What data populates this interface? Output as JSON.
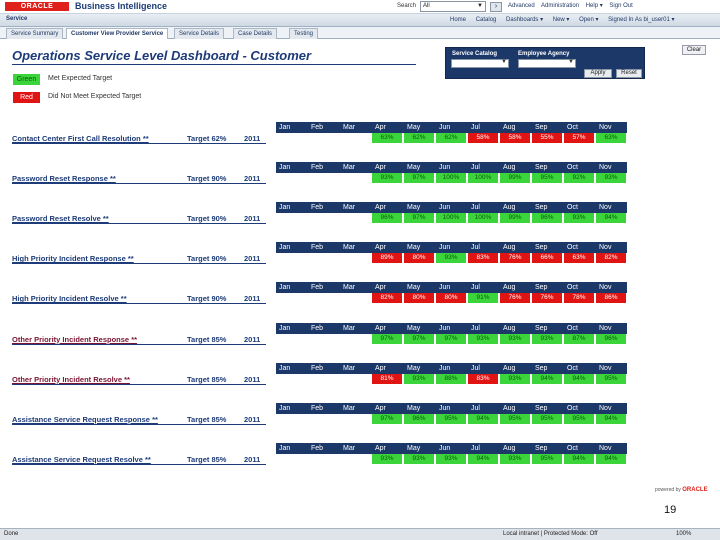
{
  "header": {
    "logo": "ORACLE",
    "app_title": "Business Intelligence",
    "search_label": "Search",
    "search_scope": "All",
    "nav": [
      "Advanced",
      "Administration",
      "Help ▾",
      "Sign Out"
    ]
  },
  "subheader": {
    "title": "Service",
    "nav": [
      "Home",
      "Catalog",
      "Dashboards ▾",
      "New ▾",
      "Open ▾",
      "Signed In As  bi_user01 ▾"
    ]
  },
  "tabs": [
    "Service Summary",
    "Customer View Provider Service",
    "Service Details",
    "Case Details",
    "Testing"
  ],
  "active_tab_index": 1,
  "dashboard": {
    "title": "Operations Service Level Dashboard - Customer",
    "clear_label": "Clear"
  },
  "filters": {
    "catalog_label": "Service Catalog",
    "agency_label": "Employee Agency",
    "apply_label": "Apply",
    "reset_label": "Reset"
  },
  "legend": {
    "green_label": "Green",
    "green_text": "Met Expected Target",
    "red_label": "Red",
    "red_text": "Did Not Meet Expected Target",
    "green_color": "#3bd43b",
    "red_color": "#e11414"
  },
  "months": [
    "Jan",
    "Feb",
    "Mar",
    "Apr",
    "May",
    "Jun",
    "Jul",
    "Aug",
    "Sep",
    "Oct",
    "Nov"
  ],
  "metrics": [
    {
      "name": "Contact Center First Call Resolution **",
      "target": "Target 62%",
      "year": "2011",
      "values": [
        "",
        "",
        "",
        "63%",
        "62%",
        "62%",
        "58%",
        "58%",
        "55%",
        "57%",
        "63%"
      ],
      "status": [
        "e",
        "e",
        "e",
        "g",
        "g",
        "g",
        "r",
        "r",
        "r",
        "r",
        "g"
      ]
    },
    {
      "name": "Password Reset Response **",
      "target": "Target 90%",
      "year": "2011",
      "values": [
        "",
        "",
        "",
        "93%",
        "97%",
        "100%",
        "100%",
        "99%",
        "95%",
        "92%",
        "93%"
      ],
      "status": [
        "e",
        "e",
        "e",
        "g",
        "g",
        "g",
        "g",
        "g",
        "g",
        "g",
        "g"
      ]
    },
    {
      "name": "Password Reset Resolve **",
      "target": "Target 90%",
      "year": "2011",
      "values": [
        "",
        "",
        "",
        "96%",
        "97%",
        "100%",
        "100%",
        "99%",
        "96%",
        "93%",
        "94%"
      ],
      "status": [
        "e",
        "e",
        "e",
        "g",
        "g",
        "g",
        "g",
        "g",
        "g",
        "g",
        "g"
      ]
    },
    {
      "name": "High Priority Incident Response **",
      "target": "Target 90%",
      "year": "2011",
      "values": [
        "",
        "",
        "",
        "89%",
        "80%",
        "93%",
        "83%",
        "76%",
        "66%",
        "63%",
        "82%"
      ],
      "status": [
        "e",
        "e",
        "e",
        "r",
        "r",
        "g",
        "r",
        "r",
        "r",
        "r",
        "r"
      ]
    },
    {
      "name": "High Priority Incident Resolve **",
      "target": "Target 90%",
      "year": "2011",
      "values": [
        "",
        "",
        "",
        "82%",
        "80%",
        "80%",
        "91%",
        "76%",
        "76%",
        "78%",
        "86%"
      ],
      "status": [
        "e",
        "e",
        "e",
        "r",
        "r",
        "r",
        "g",
        "r",
        "r",
        "r",
        "r"
      ]
    },
    {
      "name": "Other Priority Incident Response **",
      "target": "Target 85%",
      "year": "2011",
      "values": [
        "",
        "",
        "",
        "97%",
        "97%",
        "97%",
        "93%",
        "93%",
        "93%",
        "87%",
        "96%"
      ],
      "status": [
        "e",
        "e",
        "e",
        "g",
        "g",
        "g",
        "g",
        "g",
        "g",
        "g",
        "g"
      ]
    },
    {
      "name": "Other Priority Incident Resolve **",
      "target": "Target 85%",
      "year": "2011",
      "values": [
        "",
        "",
        "",
        "81%",
        "93%",
        "88%",
        "83%",
        "93%",
        "94%",
        "94%",
        "95%"
      ],
      "status": [
        "e",
        "e",
        "e",
        "r",
        "g",
        "g",
        "r",
        "g",
        "g",
        "g",
        "g"
      ]
    },
    {
      "name": "Assistance Service Request Response **",
      "target": "Target 85%",
      "year": "2011",
      "values": [
        "",
        "",
        "",
        "97%",
        "96%",
        "95%",
        "94%",
        "95%",
        "95%",
        "95%",
        "94%"
      ],
      "status": [
        "e",
        "e",
        "e",
        "g",
        "g",
        "g",
        "g",
        "g",
        "g",
        "g",
        "g"
      ]
    },
    {
      "name": "Assistance Service Request Resolve **",
      "target": "Target 85%",
      "year": "2011",
      "values": [
        "",
        "",
        "",
        "93%",
        "93%",
        "93%",
        "94%",
        "93%",
        "95%",
        "94%",
        "94%"
      ],
      "status": [
        "e",
        "e",
        "e",
        "g",
        "g",
        "g",
        "g",
        "g",
        "g",
        "g",
        "g"
      ]
    }
  ],
  "footer": {
    "powered_by": "powered by",
    "powered_brand": "ORACLE",
    "slide_number": "19",
    "status_left": "Done",
    "status_right": "Local intranet | Protected Mode: Off",
    "zoom": "100%"
  }
}
